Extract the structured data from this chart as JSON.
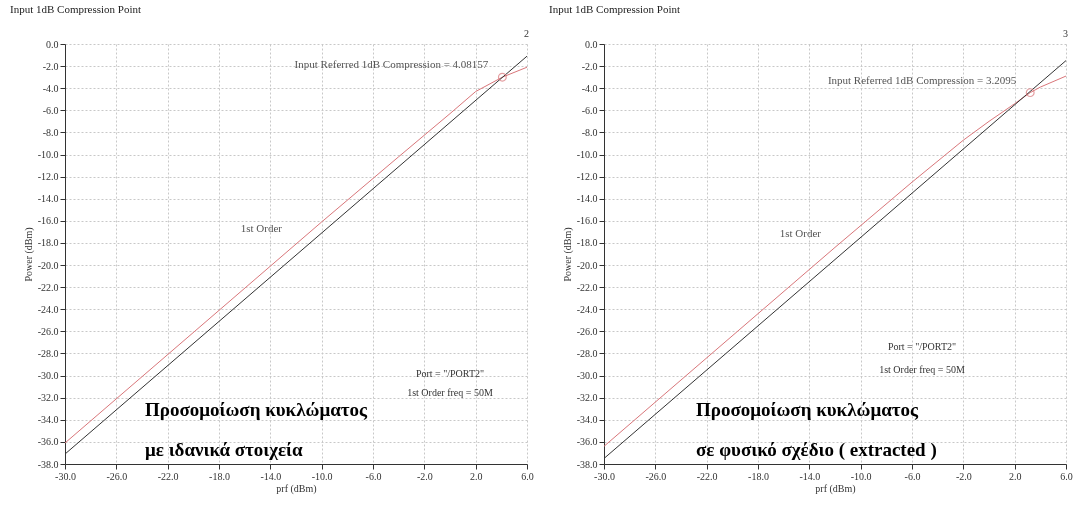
{
  "chart_data": [
    {
      "type": "line",
      "title": "Input 1dB Compression Point",
      "xlabel": "prf (dBm)",
      "ylabel": "Power (dBm)",
      "xlim": [
        -30,
        6
      ],
      "ylim": [
        -38,
        0
      ],
      "xticks": [
        {
          "value": -30,
          "label": "-30.0"
        },
        {
          "value": -26,
          "label": "-26.0"
        },
        {
          "value": -22,
          "label": "-22.0"
        },
        {
          "value": -18,
          "label": "-18.0"
        },
        {
          "value": -14,
          "label": "-14.0"
        },
        {
          "value": -10,
          "label": "-10.0"
        },
        {
          "value": -6,
          "label": "-6.0"
        },
        {
          "value": -2,
          "label": "-2.0"
        },
        {
          "value": 2,
          "label": "2.0"
        },
        {
          "value": 6,
          "label": "6.0"
        }
      ],
      "yticks": [
        {
          "value": 0,
          "label": "0.0"
        },
        {
          "value": -2,
          "label": "-2.0"
        },
        {
          "value": -4,
          "label": "-4.0"
        },
        {
          "value": -6,
          "label": "-6.0"
        },
        {
          "value": -8,
          "label": "-8.0"
        },
        {
          "value": -10,
          "label": "-10.0"
        },
        {
          "value": -12,
          "label": "-12.0"
        },
        {
          "value": -14,
          "label": "-14.0"
        },
        {
          "value": -16,
          "label": "-16.0"
        },
        {
          "value": -18,
          "label": "-18.0"
        },
        {
          "value": -20,
          "label": "-20.0"
        },
        {
          "value": -22,
          "label": "-22.0"
        },
        {
          "value": -24,
          "label": "-24.0"
        },
        {
          "value": -26,
          "label": "-26.0"
        },
        {
          "value": -28,
          "label": "-28.0"
        },
        {
          "value": -30,
          "label": "-30.0"
        },
        {
          "value": -32,
          "label": "-32.0"
        },
        {
          "value": -34,
          "label": "-34.0"
        },
        {
          "value": -36,
          "label": "-36.0"
        },
        {
          "value": -38,
          "label": "-38.0"
        }
      ],
      "grid": true,
      "series": [
        {
          "type": "line",
          "color": "#d9767a",
          "x": [
            -30,
            -10,
            -4,
            0,
            2,
            4.08,
            6
          ],
          "values": [
            -36.1,
            -16.1,
            -10.2,
            -6.3,
            -4.3,
            -3.0,
            -2.1
          ]
        },
        {
          "type": "line",
          "color": "#333333",
          "x": [
            -30,
            6
          ],
          "values": [
            -37.1,
            -1.1
          ]
        },
        {
          "type": "scatter",
          "color": "#d9767a",
          "marker": "circle",
          "x": [
            4.08
          ],
          "values": [
            -3.0
          ]
        }
      ],
      "annotations": [
        {
          "text": "Input Referred 1dB Compression = 4.08157",
          "x": 4.08157,
          "y": -3.0
        },
        {
          "text": "1st Order",
          "x": -12,
          "y": -19.1
        },
        "2",
        "Port = \"/PORT2\"",
        "1st Order freq = 50M",
        "Προσομοίωση κυκλώματος",
        "με ιδανικά στοιχεία"
      ]
    },
    {
      "type": "line",
      "title": "Input 1dB Compression Point",
      "xlabel": "prf (dBm)",
      "ylabel": "Power (dBm)",
      "xlim": [
        -30,
        6
      ],
      "ylim": [
        -38,
        0
      ],
      "xticks": [
        {
          "value": -30,
          "label": "-30.0"
        },
        {
          "value": -26,
          "label": "-26.0"
        },
        {
          "value": -22,
          "label": "-22.0"
        },
        {
          "value": -18,
          "label": "-18.0"
        },
        {
          "value": -14,
          "label": "-14.0"
        },
        {
          "value": -10,
          "label": "-10.0"
        },
        {
          "value": -6,
          "label": "-6.0"
        },
        {
          "value": -2,
          "label": "-2.0"
        },
        {
          "value": 2,
          "label": "2.0"
        },
        {
          "value": 6,
          "label": "6.0"
        }
      ],
      "yticks": [
        {
          "value": 0,
          "label": "0.0"
        },
        {
          "value": -2,
          "label": "-2.0"
        },
        {
          "value": -4,
          "label": "-4.0"
        },
        {
          "value": -6,
          "label": "-6.0"
        },
        {
          "value": -8,
          "label": "-8.0"
        },
        {
          "value": -10,
          "label": "-10.0"
        },
        {
          "value": -12,
          "label": "-12.0"
        },
        {
          "value": -14,
          "label": "-14.0"
        },
        {
          "value": -16,
          "label": "-16.0"
        },
        {
          "value": -18,
          "label": "-18.0"
        },
        {
          "value": -20,
          "label": "-20.0"
        },
        {
          "value": -22,
          "label": "-22.0"
        },
        {
          "value": -24,
          "label": "-24.0"
        },
        {
          "value": -26,
          "label": "-26.0"
        },
        {
          "value": -28,
          "label": "-28.0"
        },
        {
          "value": -30,
          "label": "-30.0"
        },
        {
          "value": -32,
          "label": "-32.0"
        },
        {
          "value": -34,
          "label": "-34.0"
        },
        {
          "value": -36,
          "label": "-36.0"
        },
        {
          "value": -38,
          "label": "-38.0"
        }
      ],
      "grid": true,
      "series": [
        {
          "type": "line",
          "color": "#d9767a",
          "x": [
            -30,
            -12,
            -6,
            -2,
            0,
            2,
            3.21,
            4,
            6
          ],
          "values": [
            -36.4,
            -18.4,
            -12.5,
            -8.7,
            -7.0,
            -5.4,
            -4.4,
            -3.9,
            -2.9
          ]
        },
        {
          "type": "line",
          "color": "#333333",
          "x": [
            -30,
            6
          ],
          "values": [
            -37.5,
            -1.5
          ]
        },
        {
          "type": "scatter",
          "color": "#d9767a",
          "marker": "circle",
          "x": [
            3.21
          ],
          "values": [
            -4.4
          ]
        }
      ],
      "annotations": [
        {
          "text": "Input Referred 1dB Compression = 3.2095",
          "x": 3.2095,
          "y": -4.4
        },
        {
          "text": "1st Order",
          "x": -12,
          "y": -19.5
        },
        "3",
        "Port = \"/PORT2\"",
        "1st Order freq = 50M",
        "Προσομοίωση κυκλώματος",
        "σε φυσικό σχέδιο ( extracted )"
      ]
    }
  ]
}
